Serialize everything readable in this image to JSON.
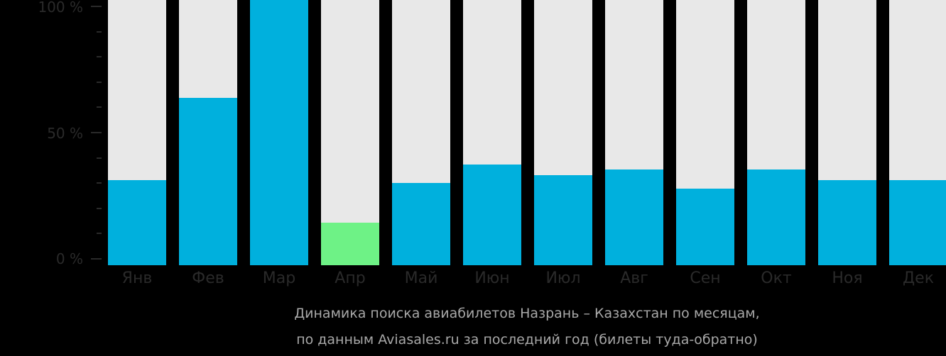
{
  "chart_data": {
    "type": "bar",
    "title": "Динамика поиска авиабилетов Назрань – Казахстан по месяцам, по данным Aviasales.ru за последний год (билеты туда-обратно)",
    "xlabel": "",
    "ylabel": "",
    "ylim": [
      0,
      100
    ],
    "y_ticks": [
      "0 %",
      "50 %",
      "100 %"
    ],
    "categories": [
      "Янв",
      "Фев",
      "Мар",
      "Апр",
      "Май",
      "Июн",
      "Июл",
      "Авг",
      "Сен",
      "Окт",
      "Ноя",
      "Дек"
    ],
    "values": [
      32,
      63,
      100,
      16,
      31,
      38,
      34,
      36,
      29,
      36,
      32,
      32
    ],
    "highlight_index": 3,
    "colors": {
      "bar": "#00b0dd",
      "highlight": "#6ef286",
      "background_bar": "#e8e8e8"
    },
    "grid": false,
    "legend": null
  },
  "axis": {
    "y_top": "100 %",
    "y_mid": "50 %",
    "y_bottom": "0 %"
  },
  "caption": {
    "line1": "Динамика поиска авиабилетов Назрань – Казахстан по месяцам,",
    "line2": "по данным Aviasales.ru за последний год (билеты туда-обратно)"
  }
}
